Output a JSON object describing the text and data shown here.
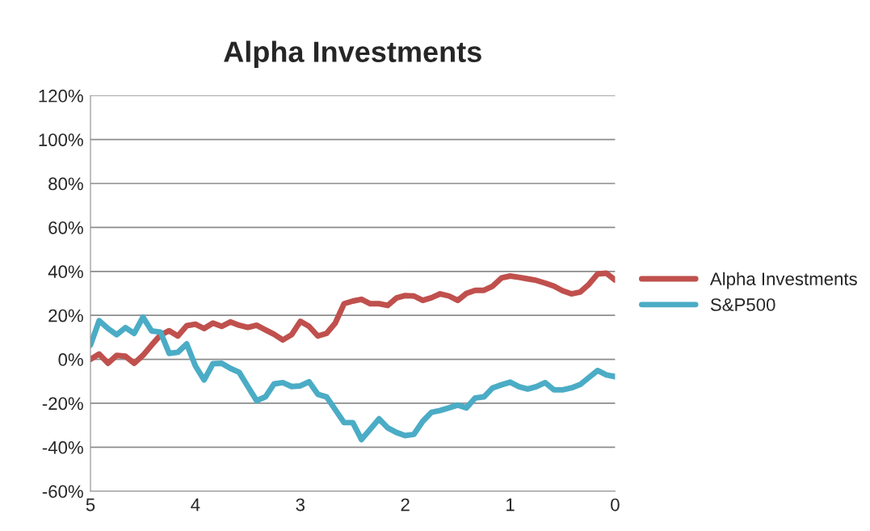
{
  "chart_data": {
    "type": "line",
    "title": "Alpha Investments",
    "x": [
      5,
      4.917,
      4.833,
      4.75,
      4.667,
      4.583,
      4.5,
      4.417,
      4.333,
      4.25,
      4.167,
      4.083,
      4,
      3.917,
      3.833,
      3.75,
      3.667,
      3.583,
      3.5,
      3.417,
      3.333,
      3.25,
      3.167,
      3.083,
      3,
      2.917,
      2.833,
      2.75,
      2.667,
      2.583,
      2.5,
      2.417,
      2.333,
      2.25,
      2.167,
      2.083,
      2,
      1.917,
      1.833,
      1.75,
      1.667,
      1.583,
      1.5,
      1.417,
      1.333,
      1.25,
      1.167,
      1.083,
      1,
      0.917,
      0.833,
      0.75,
      0.667,
      0.583,
      0.5,
      0.417,
      0.333,
      0.25,
      0.167,
      0.083,
      0
    ],
    "series": [
      {
        "name": "Alpha Investments",
        "color": "#c0504d",
        "values": [
          0,
          2.4,
          -1.8,
          1.8,
          1.4,
          -1.8,
          1.8,
          6.5,
          11,
          13,
          10.6,
          15.3,
          16,
          14,
          16.5,
          15,
          17,
          15.5,
          14.5,
          15.5,
          13.4,
          11.4,
          8.8,
          11.2,
          17.3,
          15,
          10.6,
          11.8,
          16.5,
          25.3,
          26.5,
          27.3,
          25.3,
          25.3,
          24.5,
          27.9,
          29,
          28.8,
          26.8,
          28,
          29.8,
          28.8,
          26.8,
          30,
          31.4,
          31.4,
          33.3,
          37,
          37.9,
          37.3,
          36.6,
          35.9,
          34.7,
          33.3,
          31.2,
          29.8,
          30.6,
          34.1,
          38.8,
          39.2,
          36.1
        ]
      },
      {
        "name": "S&P500",
        "color": "#4bacc6",
        "values": [
          6.5,
          17.6,
          14,
          11.2,
          14.4,
          11.8,
          19.2,
          12.9,
          12.4,
          2.7,
          3.2,
          7,
          -3,
          -9.4,
          -2,
          -1.8,
          -4.1,
          -5.9,
          -12.4,
          -18.8,
          -17.1,
          -11.2,
          -10.6,
          -12.4,
          -12.1,
          -10.2,
          -15.9,
          -17.1,
          -22.9,
          -28.8,
          -28.8,
          -36.5,
          -31.8,
          -27.1,
          -31.2,
          -33.3,
          -34.7,
          -34.1,
          -28.2,
          -24.1,
          -23.3,
          -22.1,
          -20.8,
          -22.1,
          -17.6,
          -17.1,
          -13,
          -11.6,
          -10.4,
          -12.4,
          -13.5,
          -12.4,
          -10.6,
          -13.9,
          -13.9,
          -13,
          -11.5,
          -8.3,
          -5.1,
          -7.1,
          -7.9
        ]
      }
    ],
    "xlim": [
      5,
      0
    ],
    "xticks": [
      5,
      4,
      3,
      2,
      1,
      0
    ],
    "ylim": [
      -60,
      120
    ],
    "yticks": [
      {
        "value": -60,
        "label": "-60%"
      },
      {
        "value": -40,
        "label": "-40%"
      },
      {
        "value": -20,
        "label": "-20%"
      },
      {
        "value": 0,
        "label": "0%"
      },
      {
        "value": 20,
        "label": "20%"
      },
      {
        "value": 40,
        "label": "40%"
      },
      {
        "value": 60,
        "label": "60%"
      },
      {
        "value": 80,
        "label": "80%"
      },
      {
        "value": 100,
        "label": "100%"
      },
      {
        "value": 120,
        "label": "120%"
      }
    ],
    "grid": "y",
    "legend": "right",
    "marker": "none",
    "line_style": "solid"
  }
}
